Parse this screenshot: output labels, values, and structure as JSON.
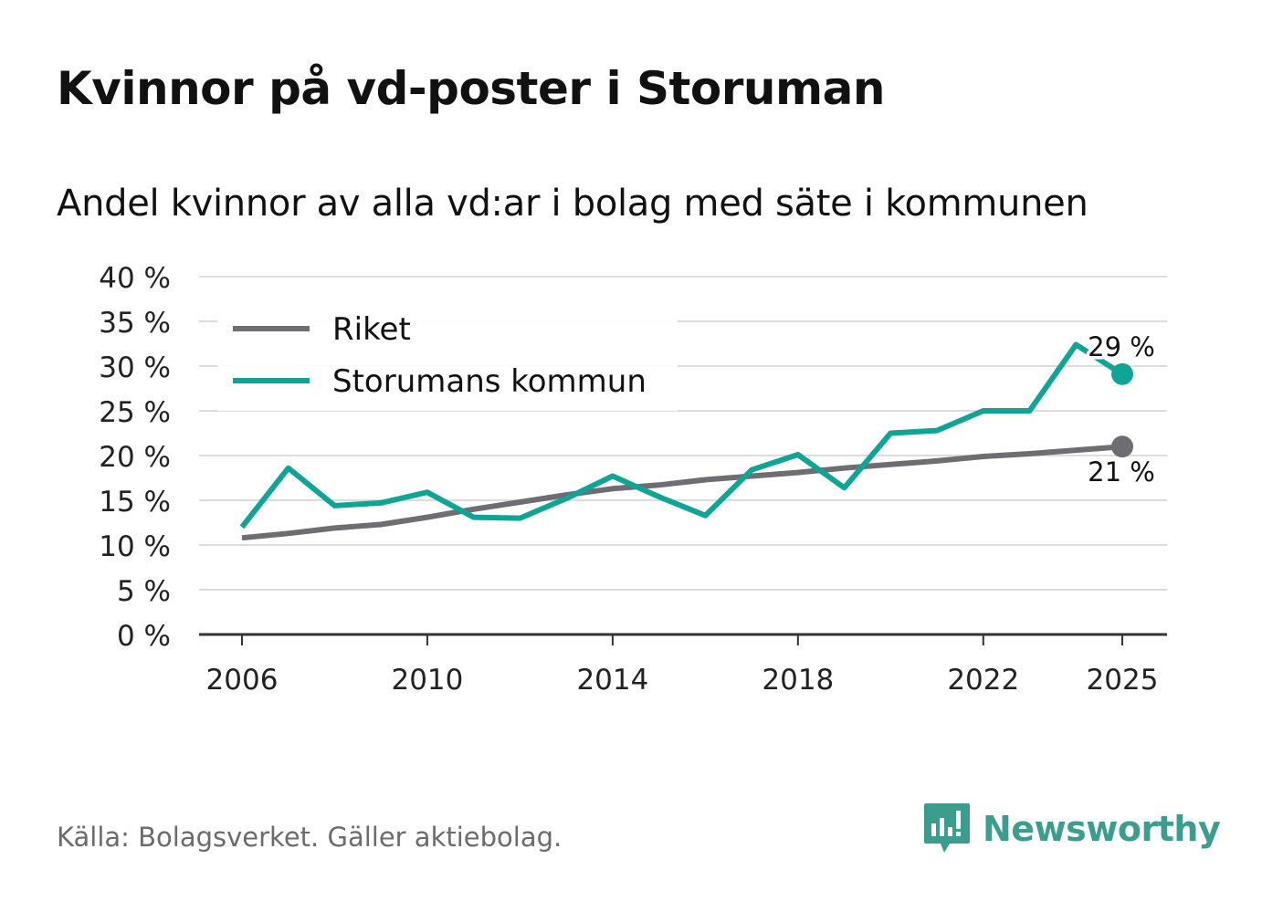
{
  "title": "Kvinnor på vd-poster i Storuman",
  "subtitle": "Andel kvinnor av alla vd:ar i bolag med säte i kommunen",
  "source": "Källa: Bolagsverket. Gäller aktiebolag.",
  "brand": {
    "name": "Newsworthy",
    "icon": "newsworthy-logo-icon",
    "color": "#3a9d8e"
  },
  "chart_data": {
    "type": "line",
    "title": "Kvinnor på vd-poster i Storuman",
    "xlabel": "",
    "ylabel": "",
    "xlim": [
      2006,
      2025
    ],
    "ylim": [
      0,
      40
    ],
    "x_ticks": [
      2006,
      2010,
      2014,
      2018,
      2022,
      2025
    ],
    "y_ticks": [
      0,
      5,
      10,
      15,
      20,
      25,
      30,
      35,
      40
    ],
    "y_tick_labels": [
      "0 %",
      "5 %",
      "10 %",
      "15 %",
      "20 %",
      "25 %",
      "30 %",
      "35 %",
      "40 %"
    ],
    "legend_position": "top-left",
    "grid": true,
    "series": [
      {
        "name": "Riket",
        "color": "#6e6d73",
        "x": [
          2006,
          2007,
          2008,
          2009,
          2010,
          2011,
          2012,
          2013,
          2014,
          2015,
          2016,
          2017,
          2018,
          2019,
          2020,
          2021,
          2022,
          2023,
          2024,
          2025
        ],
        "values": [
          10.8,
          11.3,
          11.9,
          12.3,
          13.1,
          14.0,
          14.8,
          15.6,
          16.3,
          16.7,
          17.3,
          17.7,
          18.1,
          18.6,
          19.0,
          19.4,
          19.9,
          20.2,
          20.6,
          21.0
        ],
        "end_label": "21 %"
      },
      {
        "name": "Storumans kommun",
        "color": "#0ea596",
        "x": [
          2006,
          2007,
          2008,
          2009,
          2010,
          2011,
          2012,
          2013,
          2014,
          2015,
          2016,
          2017,
          2018,
          2019,
          2020,
          2021,
          2022,
          2023,
          2024,
          2025
        ],
        "values": [
          12.0,
          18.6,
          14.4,
          14.7,
          15.9,
          13.1,
          13.0,
          15.2,
          17.7,
          15.4,
          13.3,
          18.4,
          20.1,
          16.4,
          22.5,
          22.8,
          25.0,
          25.0,
          32.4,
          29.1
        ],
        "end_label": "29 %"
      }
    ]
  }
}
